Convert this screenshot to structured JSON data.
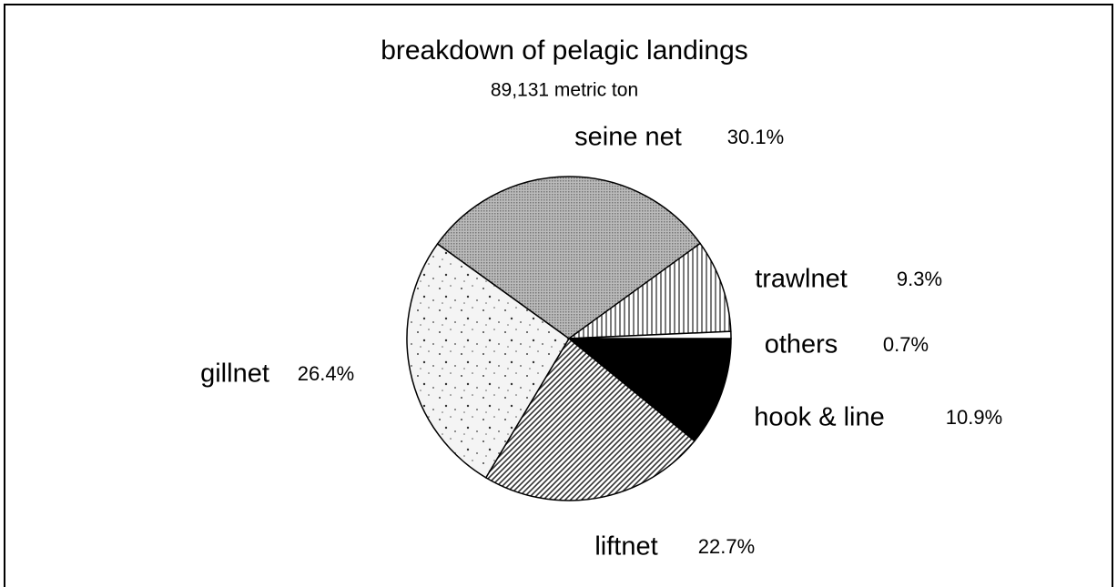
{
  "chart_data": {
    "type": "pie",
    "title": "breakdown of pelagic landings",
    "subtitle": "89,131 metric ton",
    "categories": [
      "hook & line",
      "liftnet",
      "gillnet",
      "seine net",
      "trawlnet",
      "others"
    ],
    "values": [
      10.9,
      22.7,
      26.4,
      30.1,
      9.3,
      0.7
    ],
    "value_labels": [
      "10.9%",
      "22.7%",
      "26.4%",
      "30.1%",
      "9.3%",
      "0.7%"
    ]
  }
}
